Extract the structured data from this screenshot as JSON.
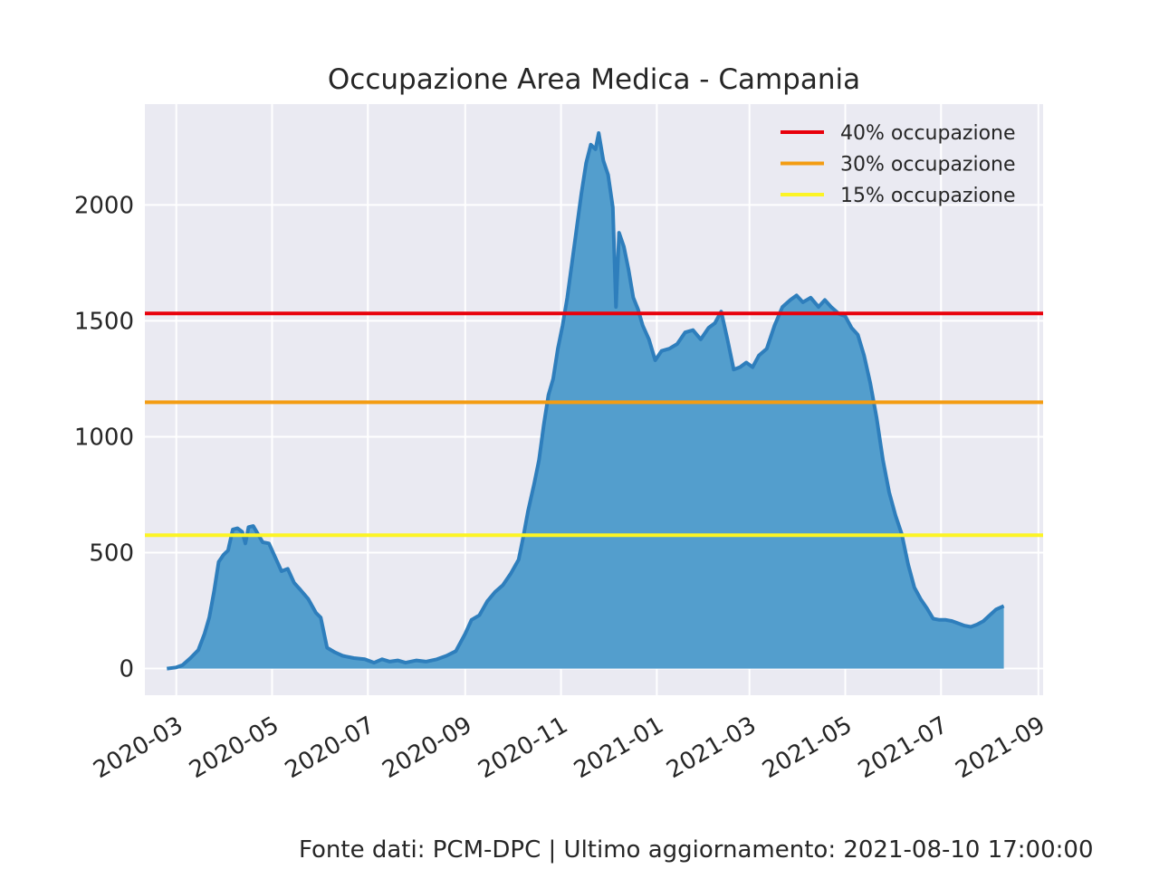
{
  "chart_data": {
    "type": "area",
    "title": "Occupazione Area Medica - Campania",
    "xlabel": "",
    "ylabel": "",
    "x_ticks": [
      "2020-03-01",
      "2020-05-01",
      "2020-07-01",
      "2020-09-01",
      "2020-11-01",
      "2021-01-01",
      "2021-03-01",
      "2021-05-01",
      "2021-07-01",
      "2021-09-01"
    ],
    "x_tick_labels": [
      "2020-03",
      "2020-05",
      "2020-07",
      "2020-09",
      "2020-11",
      "2021-01",
      "2021-03",
      "2021-05",
      "2021-07",
      "2021-09"
    ],
    "y_ticks": [
      0,
      500,
      1000,
      1500,
      2000
    ],
    "y_tick_labels": [
      "0",
      "500",
      "1000",
      "1500",
      "2000"
    ],
    "xlim": [
      "2020-02-10",
      "2021-09-04"
    ],
    "ylim": [
      -115,
      2435
    ],
    "grid": true,
    "series": [
      {
        "color": "#2e7ebc",
        "fill": "#539ecd",
        "points": [
          [
            "2020-02-24",
            0
          ],
          [
            "2020-03-01",
            5
          ],
          [
            "2020-03-05",
            15
          ],
          [
            "2020-03-10",
            45
          ],
          [
            "2020-03-15",
            80
          ],
          [
            "2020-03-19",
            150
          ],
          [
            "2020-03-22",
            220
          ],
          [
            "2020-03-25",
            330
          ],
          [
            "2020-03-28",
            460
          ],
          [
            "2020-03-31",
            490
          ],
          [
            "2020-04-03",
            510
          ],
          [
            "2020-04-06",
            600
          ],
          [
            "2020-04-09",
            605
          ],
          [
            "2020-04-12",
            590
          ],
          [
            "2020-04-14",
            540
          ],
          [
            "2020-04-16",
            610
          ],
          [
            "2020-04-19",
            615
          ],
          [
            "2020-04-22",
            580
          ],
          [
            "2020-04-25",
            545
          ],
          [
            "2020-04-29",
            540
          ],
          [
            "2020-05-03",
            480
          ],
          [
            "2020-05-07",
            420
          ],
          [
            "2020-05-11",
            430
          ],
          [
            "2020-05-15",
            370
          ],
          [
            "2020-05-19",
            340
          ],
          [
            "2020-05-24",
            300
          ],
          [
            "2020-05-29",
            240
          ],
          [
            "2020-06-01",
            220
          ],
          [
            "2020-06-05",
            90
          ],
          [
            "2020-06-10",
            70
          ],
          [
            "2020-06-15",
            55
          ],
          [
            "2020-06-22",
            45
          ],
          [
            "2020-06-29",
            40
          ],
          [
            "2020-07-05",
            25
          ],
          [
            "2020-07-10",
            40
          ],
          [
            "2020-07-15",
            30
          ],
          [
            "2020-07-20",
            35
          ],
          [
            "2020-07-25",
            25
          ],
          [
            "2020-08-01",
            35
          ],
          [
            "2020-08-07",
            30
          ],
          [
            "2020-08-14",
            40
          ],
          [
            "2020-08-20",
            55
          ],
          [
            "2020-08-26",
            75
          ],
          [
            "2020-09-01",
            150
          ],
          [
            "2020-09-05",
            210
          ],
          [
            "2020-09-10",
            230
          ],
          [
            "2020-09-15",
            290
          ],
          [
            "2020-09-20",
            330
          ],
          [
            "2020-09-25",
            360
          ],
          [
            "2020-09-30",
            410
          ],
          [
            "2020-10-05",
            470
          ],
          [
            "2020-10-08",
            570
          ],
          [
            "2020-10-11",
            680
          ],
          [
            "2020-10-15",
            800
          ],
          [
            "2020-10-18",
            900
          ],
          [
            "2020-10-21",
            1050
          ],
          [
            "2020-10-24",
            1180
          ],
          [
            "2020-10-27",
            1250
          ],
          [
            "2020-10-30",
            1380
          ],
          [
            "2020-11-02",
            1480
          ],
          [
            "2020-11-05",
            1600
          ],
          [
            "2020-11-08",
            1750
          ],
          [
            "2020-11-11",
            1900
          ],
          [
            "2020-11-14",
            2050
          ],
          [
            "2020-11-17",
            2180
          ],
          [
            "2020-11-20",
            2260
          ],
          [
            "2020-11-23",
            2240
          ],
          [
            "2020-11-25",
            2310
          ],
          [
            "2020-11-28",
            2190
          ],
          [
            "2020-12-01",
            2130
          ],
          [
            "2020-12-04",
            1990
          ],
          [
            "2020-12-06",
            1560
          ],
          [
            "2020-12-08",
            1880
          ],
          [
            "2020-12-11",
            1820
          ],
          [
            "2020-12-14",
            1720
          ],
          [
            "2020-12-17",
            1600
          ],
          [
            "2020-12-20",
            1550
          ],
          [
            "2020-12-23",
            1480
          ],
          [
            "2020-12-27",
            1420
          ],
          [
            "2020-12-31",
            1330
          ],
          [
            "2021-01-04",
            1370
          ],
          [
            "2021-01-09",
            1380
          ],
          [
            "2021-01-14",
            1400
          ],
          [
            "2021-01-19",
            1450
          ],
          [
            "2021-01-24",
            1460
          ],
          [
            "2021-01-29",
            1420
          ],
          [
            "2021-02-03",
            1470
          ],
          [
            "2021-02-07",
            1490
          ],
          [
            "2021-02-11",
            1540
          ],
          [
            "2021-02-15",
            1420
          ],
          [
            "2021-02-19",
            1290
          ],
          [
            "2021-02-23",
            1300
          ],
          [
            "2021-02-27",
            1320
          ],
          [
            "2021-03-03",
            1300
          ],
          [
            "2021-03-07",
            1350
          ],
          [
            "2021-03-12",
            1380
          ],
          [
            "2021-03-17",
            1480
          ],
          [
            "2021-03-22",
            1560
          ],
          [
            "2021-03-27",
            1590
          ],
          [
            "2021-03-31",
            1610
          ],
          [
            "2021-04-04",
            1580
          ],
          [
            "2021-04-09",
            1600
          ],
          [
            "2021-04-14",
            1560
          ],
          [
            "2021-04-18",
            1590
          ],
          [
            "2021-04-22",
            1560
          ],
          [
            "2021-04-27",
            1530
          ],
          [
            "2021-05-01",
            1520
          ],
          [
            "2021-05-05",
            1470
          ],
          [
            "2021-05-09",
            1440
          ],
          [
            "2021-05-13",
            1350
          ],
          [
            "2021-05-17",
            1230
          ],
          [
            "2021-05-21",
            1080
          ],
          [
            "2021-05-25",
            900
          ],
          [
            "2021-05-29",
            760
          ],
          [
            "2021-06-02",
            660
          ],
          [
            "2021-06-06",
            580
          ],
          [
            "2021-06-10",
            450
          ],
          [
            "2021-06-14",
            350
          ],
          [
            "2021-06-18",
            300
          ],
          [
            "2021-06-22",
            260
          ],
          [
            "2021-06-26",
            215
          ],
          [
            "2021-06-30",
            210
          ],
          [
            "2021-07-04",
            210
          ],
          [
            "2021-07-08",
            205
          ],
          [
            "2021-07-12",
            195
          ],
          [
            "2021-07-16",
            185
          ],
          [
            "2021-07-20",
            180
          ],
          [
            "2021-07-24",
            190
          ],
          [
            "2021-07-28",
            205
          ],
          [
            "2021-08-01",
            230
          ],
          [
            "2021-08-05",
            255
          ],
          [
            "2021-08-10",
            270
          ]
        ]
      }
    ],
    "reference_lines": [
      {
        "name": "40% occupazione",
        "value": 1532,
        "color": "#e8000b"
      },
      {
        "name": "30% occupazione",
        "value": 1149,
        "color": "#f39c12"
      },
      {
        "name": "15% occupazione",
        "value": 575,
        "color": "#fcf424"
      }
    ],
    "legend": {
      "placement": "top-right"
    },
    "colors": {
      "plot_background": "#eaeaf2",
      "grid": "#ffffff",
      "text": "#262626"
    }
  },
  "footer": {
    "source_text": "Fonte dati: PCM-DPC | Ultimo aggiornamento: 2021-08-10 17:00:00"
  }
}
